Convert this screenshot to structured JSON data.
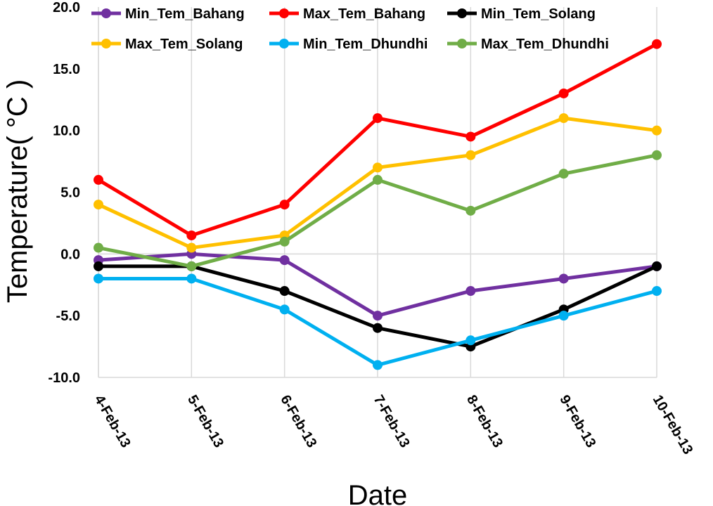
{
  "chart_data": {
    "type": "line",
    "xlabel": "Date",
    "ylabel": "Temperature( °C )",
    "categories": [
      "4-Feb-13",
      "5-Feb-13",
      "6-Feb-13",
      "7-Feb-13",
      "8-Feb-13",
      "9-Feb-13",
      "10-Feb-13"
    ],
    "ylim": [
      -10,
      20
    ],
    "yticks": [
      -10,
      -5,
      0,
      5,
      10,
      15,
      20
    ],
    "ytick_labels": [
      "-10.0",
      "-5.0",
      "0.0",
      "5.0",
      "10.0",
      "15.0",
      "20.0"
    ],
    "grid": "vertical",
    "legend": "top",
    "series": [
      {
        "name": "Min_Tem_Bahang",
        "color": "#7030A0",
        "values": [
          -0.5,
          0,
          -0.5,
          -5,
          -3,
          -2,
          -1
        ]
      },
      {
        "name": "Max_Tem_Bahang",
        "color": "#FF0000",
        "values": [
          6,
          1.5,
          4,
          11,
          9.5,
          13,
          17
        ]
      },
      {
        "name": "Min_Tem_Solang",
        "color": "#000000",
        "values": [
          -1,
          -1,
          -3,
          -6,
          -7.5,
          -4.5,
          -1
        ]
      },
      {
        "name": "Max_Tem_Solang",
        "color": "#FFC000",
        "values": [
          4,
          0.5,
          1.5,
          7,
          8,
          11,
          10
        ]
      },
      {
        "name": "Min_Tem_Dhundhi",
        "color": "#00B0F0",
        "values": [
          -2,
          -2,
          -4.5,
          -9,
          -7,
          -5,
          -3
        ]
      },
      {
        "name": "Max_Tem_Dhundhi",
        "color": "#70AD47",
        "values": [
          0.5,
          -1,
          1,
          6,
          3.5,
          6.5,
          8
        ]
      }
    ]
  }
}
